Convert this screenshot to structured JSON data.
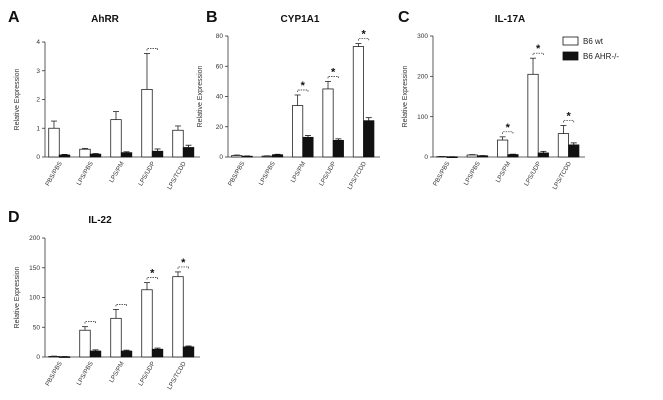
{
  "legend": {
    "wt_label": "B6 wt",
    "ko_label": "B6 AHR-/-",
    "wt_color": "#ffffff",
    "ko_color": "#111111"
  },
  "chart_data": [
    {
      "type": "bar",
      "panel": "A",
      "title": "AhRR",
      "ylabel": "Relative Expression",
      "ylim": [
        0,
        4
      ],
      "yticks": [
        0,
        1,
        2,
        3,
        4
      ],
      "categories": [
        "PBS/PBS",
        "LPS/PBS",
        "LPS/PM",
        "LPS/UDP",
        "LPS/TCDD"
      ],
      "series": [
        {
          "name": "B6 wt",
          "values": [
            1.0,
            0.27,
            1.3,
            2.35,
            0.93
          ],
          "errors": [
            0.25,
            0.03,
            0.28,
            1.25,
            0.15
          ]
        },
        {
          "name": "B6 AHR-/-",
          "values": [
            0.07,
            0.1,
            0.15,
            0.2,
            0.33
          ],
          "errors": [
            0.02,
            0.02,
            0.03,
            0.08,
            0.08
          ]
        }
      ],
      "significance": [
        {
          "category": "LPS/UDP",
          "star": false
        }
      ]
    },
    {
      "type": "bar",
      "panel": "B",
      "title": "CYP1A1",
      "ylabel": "Relative Expression",
      "ylim": [
        0,
        80
      ],
      "yticks": [
        0,
        20,
        40,
        60,
        80
      ],
      "categories": [
        "PBS/PBS",
        "LPS/PBS",
        "LPS/PM",
        "LPS/UDP",
        "LPS/TCDD"
      ],
      "series": [
        {
          "name": "B6 wt",
          "values": [
            1.0,
            0.6,
            34,
            45,
            73
          ],
          "errors": [
            0.3,
            0.2,
            7,
            5,
            2
          ]
        },
        {
          "name": "B6 AHR-/-",
          "values": [
            0.5,
            1.5,
            13,
            11,
            24
          ],
          "errors": [
            0.2,
            0.3,
            1.2,
            1,
            2
          ]
        }
      ],
      "significance": [
        {
          "category": "LPS/PM",
          "star": true
        },
        {
          "category": "LPS/UDP",
          "star": true
        },
        {
          "category": "LPS/TCDD",
          "star": true
        }
      ]
    },
    {
      "type": "bar",
      "panel": "C",
      "title": "IL-17A",
      "ylabel": "Relative Expression",
      "ylim": [
        0,
        300
      ],
      "yticks": [
        0,
        100,
        200,
        300
      ],
      "categories": [
        "PBS/PBS",
        "LPS/PBS",
        "LPS/PM",
        "LPS/UDP",
        "LPS/TCDD"
      ],
      "series": [
        {
          "name": "B6 wt",
          "values": [
            1,
            5,
            42,
            205,
            58
          ],
          "errors": [
            0.5,
            1,
            8,
            40,
            20
          ]
        },
        {
          "name": "B6 AHR-/-",
          "values": [
            0.5,
            3,
            6,
            10,
            30
          ],
          "errors": [
            0.2,
            0.5,
            1,
            4,
            5
          ]
        }
      ],
      "significance": [
        {
          "category": "LPS/PM",
          "star": true
        },
        {
          "category": "LPS/UDP",
          "star": true
        },
        {
          "category": "LPS/TCDD",
          "star": true
        }
      ]
    },
    {
      "type": "bar",
      "panel": "D",
      "title": "IL-22",
      "ylabel": "Relative Expression",
      "ylim": [
        0,
        200
      ],
      "yticks": [
        0,
        50,
        100,
        150,
        200
      ],
      "categories": [
        "PBS/PBS",
        "LPS/PBS",
        "LPS/PM",
        "LPS/UDP",
        "LPS/TCDD"
      ],
      "series": [
        {
          "name": "B6 wt",
          "values": [
            1,
            45,
            65,
            113,
            135
          ],
          "errors": [
            0.5,
            6,
            15,
            12,
            8
          ]
        },
        {
          "name": "B6 AHR-/-",
          "values": [
            0.5,
            10,
            10,
            13,
            17
          ],
          "errors": [
            0.2,
            2,
            1.5,
            2,
            1.5
          ]
        }
      ],
      "significance": [
        {
          "category": "LPS/PBS",
          "star": false
        },
        {
          "category": "LPS/PM",
          "star": false
        },
        {
          "category": "LPS/UDP",
          "star": true
        },
        {
          "category": "LPS/TCDD",
          "star": true
        }
      ]
    }
  ]
}
